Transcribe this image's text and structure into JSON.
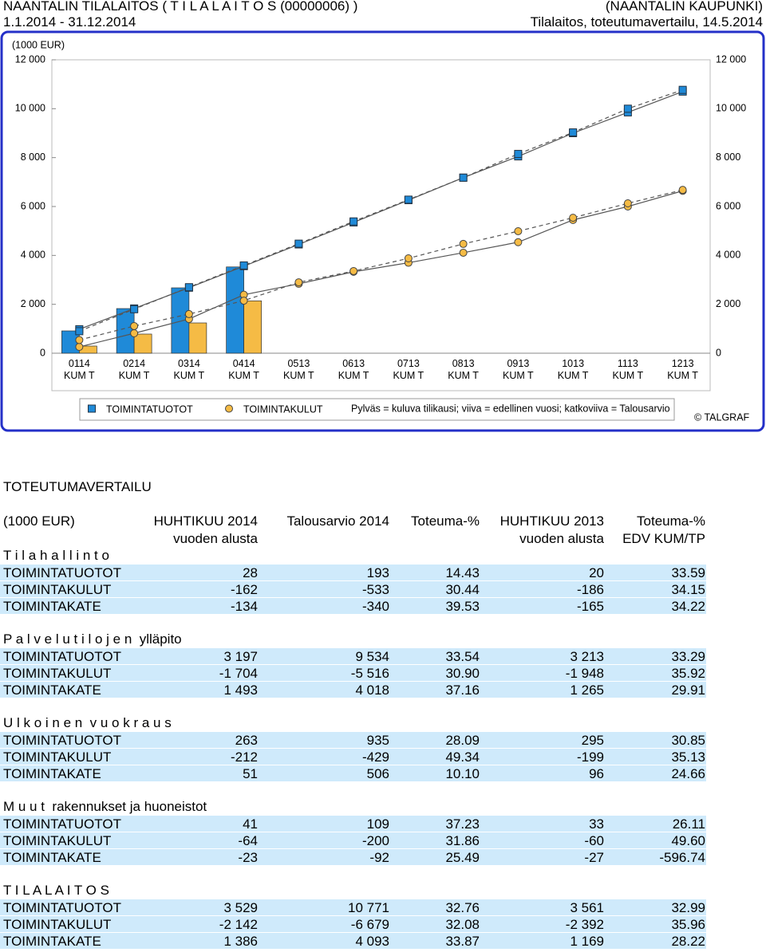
{
  "header": {
    "title": "NAANTALIN TILALAITOS ( T I L A L A I T O S (00000006) )",
    "organization": "(NAANTALIN KAUPUNKI)",
    "period": "1.1.2014 - 31.12.2014",
    "report": "Tilalaitos, toteutumavertailu, 14.5.2014"
  },
  "chart_data": {
    "type": "bar-line",
    "y_label": "(1000 EUR)",
    "categories": [
      "0114 KUM T",
      "0214 KUM T",
      "0314 KUM T",
      "0414 KUM T",
      "0513 KUM T",
      "0613 KUM T",
      "0713 KUM T",
      "0813 KUM T",
      "0913 KUM T",
      "1013 KUM T",
      "1113 KUM T",
      "1213 KUM T"
    ],
    "ylim": [
      0,
      12000
    ],
    "yticks": [
      0,
      {
        "value": 2000,
        "label": "2 000"
      },
      {
        "value": 4000,
        "label": "4 000"
      },
      {
        "value": 6000,
        "label": "6 000"
      },
      {
        "value": 8000,
        "label": "8 000"
      },
      {
        "value": 10000,
        "label": "10 000"
      },
      {
        "value": 12000,
        "label": "12 000"
      }
    ],
    "series": [
      {
        "name": "TOIMINTATUOTOT",
        "color": "#1f8ad8",
        "marker": "square",
        "values": [
          913,
          1826,
          2674,
          3529,
          null,
          null,
          null,
          null,
          null,
          null,
          null,
          null
        ],
        "previous_year": [
          980,
          1830,
          2680,
          3561,
          4450,
          5350,
          6260,
          7180,
          8050,
          9000,
          9850,
          10700
        ],
        "budget": [
          900,
          1800,
          2700,
          3590,
          4480,
          5390,
          6280,
          7180,
          8150,
          9030,
          10000,
          10771
        ]
      },
      {
        "name": "TOIMINTAKULUT",
        "color": "#f5bb45",
        "marker": "circle",
        "values": [
          293,
          783,
          1239,
          2142,
          null,
          null,
          null,
          null,
          null,
          null,
          null,
          null
        ],
        "previous_year": [
          260,
          815,
          1400,
          2392,
          2840,
          3330,
          3700,
          4110,
          4540,
          5450,
          6000,
          6640
        ],
        "budget": [
          540,
          1110,
          1600,
          2150,
          2900,
          3360,
          3880,
          4470,
          4990,
          5540,
          6130,
          6679
        ]
      }
    ],
    "legend_note": "Pylväs = kuluva tilikausi; viiva = edellinen vuosi; katkoviiva = Talousarvio",
    "copyright": "© TALGRAF"
  },
  "table": {
    "title": "TOTEUTUMAVERTAILU",
    "header": [
      [
        "(1000 EUR)"
      ],
      [
        "HUHTIKUU 2014",
        "vuoden alusta"
      ],
      [
        "Talousarvio 2014"
      ],
      [
        "Toteuma-%"
      ],
      [
        "HUHTIKUU 2013",
        "vuoden alusta"
      ],
      [
        "Toteuma-%",
        "EDV KUM/TP"
      ]
    ],
    "groups": [
      {
        "title": "T i l a h a l l i n t o",
        "rows": [
          [
            "TOIMINTATUOTOT",
            "28",
            "193",
            "14.43",
            "20",
            "33.59"
          ],
          [
            "TOIMINTAKULUT",
            "-162",
            "-533",
            "30.44",
            "-186",
            "34.15"
          ],
          [
            "TOIMINTAKATE",
            "-134",
            "-340",
            "39.53",
            "-165",
            "34.22"
          ]
        ]
      },
      {
        "title": "P a l v e l u t i l o j e n  ylläpito",
        "rows": [
          [
            "TOIMINTATUOTOT",
            "3 197",
            "9 534",
            "33.54",
            "3 213",
            "33.29"
          ],
          [
            "TOIMINTAKULUT",
            "-1 704",
            "-5 516",
            "30.90",
            "-1 948",
            "35.92"
          ],
          [
            "TOIMINTAKATE",
            "1 493",
            "4 018",
            "37.16",
            "1 265",
            "29.91"
          ]
        ]
      },
      {
        "title": "U l k o i n e n  v u o k r a u s",
        "rows": [
          [
            "TOIMINTATUOTOT",
            "263",
            "935",
            "28.09",
            "295",
            "30.85"
          ],
          [
            "TOIMINTAKULUT",
            "-212",
            "-429",
            "49.34",
            "-199",
            "35.13"
          ],
          [
            "TOIMINTAKATE",
            "51",
            "506",
            "10.10",
            "96",
            "24.66"
          ]
        ]
      },
      {
        "title": "M u u t  rakennukset ja huoneistot",
        "rows": [
          [
            "TOIMINTATUOTOT",
            "41",
            "109",
            "37.23",
            "33",
            "26.11"
          ],
          [
            "TOIMINTAKULUT",
            "-64",
            "-200",
            "31.86",
            "-60",
            "49.60"
          ],
          [
            "TOIMINTAKATE",
            "-23",
            "-92",
            "25.49",
            "-27",
            "-596.74"
          ]
        ]
      },
      {
        "title": "T I L A L A I T O S",
        "rows": [
          [
            "TOIMINTATUOTOT",
            "3 529",
            "10 771",
            "32.76",
            "3 561",
            "32.99"
          ],
          [
            "TOIMINTAKULUT",
            "-2 142",
            "-6 679",
            "32.08",
            "-2 392",
            "35.96"
          ],
          [
            "TOIMINTAKATE",
            "1 386",
            "4 093",
            "33.87",
            "1 169",
            "28.22"
          ]
        ]
      }
    ]
  }
}
